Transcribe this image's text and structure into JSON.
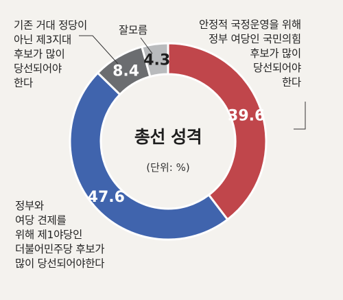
{
  "chart_data": {
    "type": "pie",
    "title": "총선 성격",
    "unit": "(단위: %)",
    "colors": [
      "#c0464b",
      "#4064ad",
      "#6b6d70",
      "#b9bbbd"
    ],
    "slices": [
      {
        "label": "안정적 국정운영을 위해\n정부 여당인 국민의힘\n후보가 많이\n당선되어야\n한다",
        "value": 39.6,
        "value_label": "39.6"
      },
      {
        "label": "정부와\n여당 견제를\n위해 제1야당인\n더불어민주당 후보가\n많이 당선되어야한다",
        "value": 47.6,
        "value_label": "47.6"
      },
      {
        "label": "기존 거대 정당이\n아닌 제3지대\n후보가 많이\n당선되어야\n한다",
        "value": 8.4,
        "value_label": "8.4"
      },
      {
        "label": "잘모름",
        "value": 4.3,
        "value_label": "4.3"
      }
    ]
  }
}
